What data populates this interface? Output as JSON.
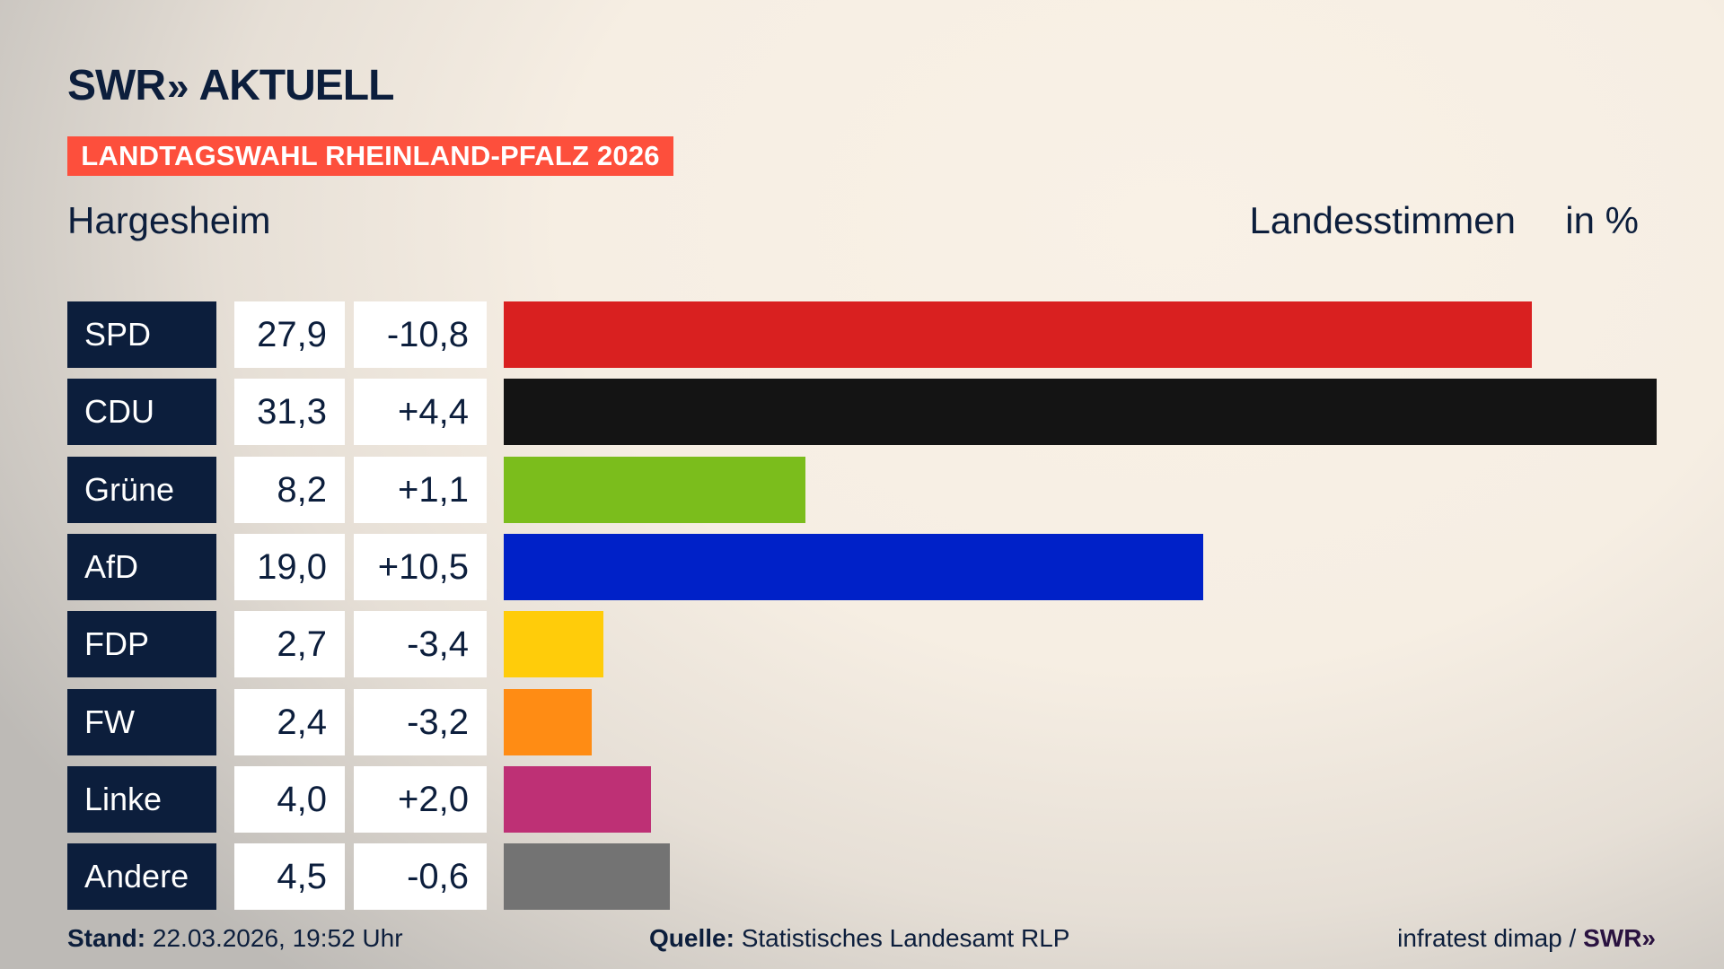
{
  "header": {
    "logo_swr": "SWR",
    "logo_arrows": "»",
    "logo_aktuell": "AKTUELL",
    "banner": "LANDTAGSWAHL RHEINLAND-PFALZ 2026",
    "place": "Hargesheim",
    "measure": "Landesstimmen",
    "unit": "in %"
  },
  "chart_data": {
    "type": "bar",
    "orientation": "horizontal",
    "title": "Landesstimmen",
    "unit": "in %",
    "xlim": [
      0,
      31.3
    ],
    "categories": [
      "SPD",
      "CDU",
      "Grüne",
      "AfD",
      "FDP",
      "FW",
      "Linke",
      "Andere"
    ],
    "values": [
      27.9,
      31.3,
      8.2,
      19.0,
      2.7,
      2.4,
      4.0,
      4.5
    ],
    "value_labels": [
      "27,9",
      "31,3",
      "8,2",
      "19,0",
      "2,7",
      "2,4",
      "4,0",
      "4,5"
    ],
    "diff_labels": [
      "-10,8",
      "+4,4",
      "+1,1",
      "+10,5",
      "-3,4",
      "-3,2",
      "+2,0",
      "-0,6"
    ],
    "colors": [
      "#d92020",
      "#141414",
      "#7bbd1c",
      "#0021c8",
      "#ffcc0a",
      "#ff8c14",
      "#be3075",
      "#737373"
    ]
  },
  "footer": {
    "stand_label": "Stand:",
    "stand_value": "22.03.2026, 19:52 Uhr",
    "quelle_label": "Quelle:",
    "quelle_value": "Statistisches Landesamt RLP",
    "credit": "infratest dimap /",
    "credit_logo": "SWR»"
  }
}
